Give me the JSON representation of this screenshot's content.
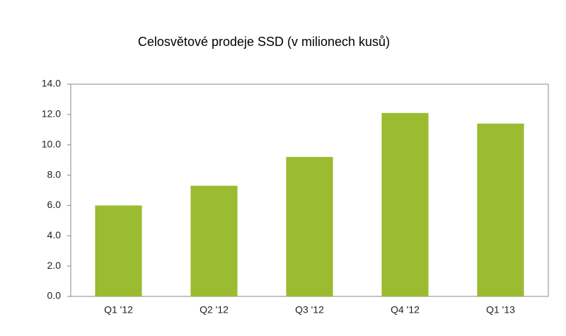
{
  "chart_data": {
    "type": "bar",
    "title": "Celosvětové prodeje SSD (v milionech kusů)",
    "categories": [
      "Q1 '12",
      "Q2 '12",
      "Q3 '12",
      "Q4 '12",
      "Q1 '13"
    ],
    "values": [
      6.0,
      7.3,
      9.2,
      12.1,
      11.4
    ],
    "color": "#9bbb30",
    "ylim": [
      0,
      14
    ],
    "yticks": [
      {
        "value": 0,
        "label": "0.0"
      },
      {
        "value": 2,
        "label": "2.0"
      },
      {
        "value": 4,
        "label": "4.0"
      },
      {
        "value": 6,
        "label": "6.0"
      },
      {
        "value": 8,
        "label": "8.0"
      },
      {
        "value": 10,
        "label": "10.0"
      },
      {
        "value": 12,
        "label": "12.0"
      },
      {
        "value": 14,
        "label": "14.0"
      }
    ],
    "grid": false
  }
}
